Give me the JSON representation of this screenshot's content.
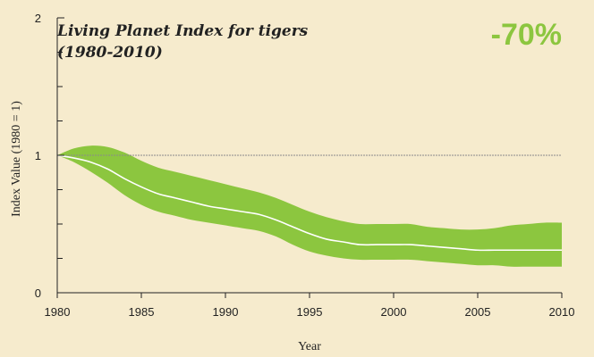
{
  "chart_data": {
    "type": "area",
    "title": "Living Planet Index for tigers",
    "subtitle": "(1980-2010)",
    "headline_value": "-70%",
    "xlabel": "Year",
    "ylabel": "Index Value (1980 = 1)",
    "xlim": [
      1980,
      2010
    ],
    "ylim": [
      0,
      2
    ],
    "x_ticks": [
      "1980",
      "1985",
      "1990",
      "1995",
      "2000",
      "2005",
      "2010"
    ],
    "y_ticks": [
      "0",
      "1",
      "2"
    ],
    "reference_line": 1,
    "grid": false,
    "x": [
      1980,
      1981,
      1982,
      1983,
      1984,
      1985,
      1986,
      1987,
      1988,
      1989,
      1990,
      1991,
      1992,
      1993,
      1994,
      1995,
      1996,
      1997,
      1998,
      1999,
      2000,
      2001,
      2002,
      2003,
      2004,
      2005,
      2006,
      2007,
      2008,
      2009,
      2010
    ],
    "series": [
      {
        "values": [
          1.0,
          0.98,
          0.95,
          0.9,
          0.83,
          0.77,
          0.72,
          0.69,
          0.66,
          0.63,
          0.61,
          0.59,
          0.57,
          0.53,
          0.48,
          0.43,
          0.39,
          0.37,
          0.35,
          0.35,
          0.35,
          0.35,
          0.34,
          0.33,
          0.32,
          0.31,
          0.31,
          0.31,
          0.31,
          0.31,
          0.31
        ]
      }
    ],
    "confidence_upper": [
      1.0,
      1.05,
      1.07,
      1.06,
      1.02,
      0.96,
      0.91,
      0.88,
      0.85,
      0.82,
      0.79,
      0.76,
      0.73,
      0.69,
      0.64,
      0.59,
      0.55,
      0.52,
      0.5,
      0.5,
      0.5,
      0.5,
      0.48,
      0.47,
      0.46,
      0.46,
      0.47,
      0.49,
      0.5,
      0.51,
      0.51
    ],
    "confidence_lower": [
      1.0,
      0.95,
      0.88,
      0.8,
      0.71,
      0.64,
      0.59,
      0.56,
      0.53,
      0.51,
      0.49,
      0.47,
      0.45,
      0.41,
      0.35,
      0.3,
      0.27,
      0.25,
      0.24,
      0.24,
      0.24,
      0.24,
      0.23,
      0.22,
      0.21,
      0.2,
      0.2,
      0.19,
      0.19,
      0.19,
      0.19
    ],
    "colors": {
      "band": "#8cc63f",
      "line": "#ffffff",
      "reference": "#8a8a8a",
      "background": "#f6ebcd",
      "headline": "#8cc63f"
    }
  }
}
